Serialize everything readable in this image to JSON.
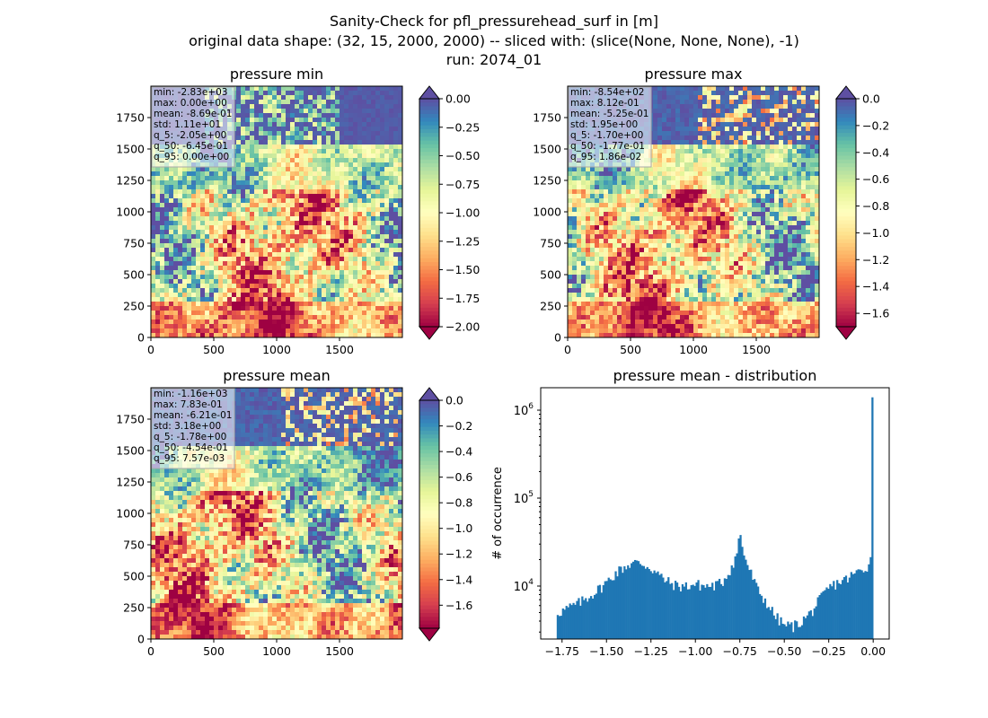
{
  "figure": {
    "title_lines": [
      "Sanity-Check for pfl_pressurehead_surf in [m]",
      "original data shape: (32, 15, 2000, 2000) -- sliced with: (slice(None, None, None), -1)",
      "run: 2074_01"
    ]
  },
  "panels": [
    {
      "title": "pressure min",
      "stats": [
        "min: -2.83e+03",
        "max: 0.00e+00",
        "mean: -8.69e-01",
        "std: 1.11e+01",
        "q_5: -2.05e+00",
        "q_50: -6.45e-01",
        "q_95: 0.00e+00"
      ],
      "x_ticks": [
        "0",
        "500",
        "1000",
        "1500"
      ],
      "y_ticks": [
        "0",
        "250",
        "500",
        "750",
        "1000",
        "1250",
        "1500",
        "1750"
      ],
      "colorbar": {
        "vmin": -2.0,
        "vmax": 0.0,
        "ticks": [
          "0.00",
          "−0.25",
          "−0.50",
          "−0.75",
          "−1.00",
          "−1.25",
          "−1.50",
          "−1.75",
          "−2.00"
        ],
        "extend": "both"
      }
    },
    {
      "title": "pressure max",
      "stats": [
        "min: -8.54e+02",
        "max: 8.12e-01",
        "mean: -5.25e-01",
        "std: 1.95e+00",
        "q_5: -1.70e+00",
        "q_50: -1.77e-01",
        "q_95: 1.86e-02"
      ],
      "x_ticks": [
        "0",
        "500",
        "1000",
        "1500"
      ],
      "y_ticks": [
        "0",
        "250",
        "500",
        "750",
        "1000",
        "1250",
        "1500",
        "1750"
      ],
      "colorbar": {
        "vmin": -1.7,
        "vmax": 0.0,
        "ticks": [
          "0.0",
          "−0.2",
          "−0.4",
          "−0.6",
          "−0.8",
          "−1.0",
          "−1.2",
          "−1.4",
          "−1.6"
        ],
        "extend": "both"
      }
    },
    {
      "title": "pressure mean",
      "stats": [
        "min: -1.16e+03",
        "max: 7.83e-01",
        "mean: -6.21e-01",
        "std: 3.18e+00",
        "q_5: -1.78e+00",
        "q_50: -4.54e-01",
        "q_95: 7.57e-03"
      ],
      "x_ticks": [
        "0",
        "500",
        "1000",
        "1500"
      ],
      "y_ticks": [
        "0",
        "250",
        "500",
        "750",
        "1000",
        "1250",
        "1500",
        "1750"
      ],
      "colorbar": {
        "vmin": -1.78,
        "vmax": 0.0,
        "ticks": [
          "0.0",
          "−0.2",
          "−0.4",
          "−0.6",
          "−0.8",
          "−1.0",
          "−1.2",
          "−1.4",
          "−1.6"
        ],
        "extend": "both"
      }
    }
  ],
  "colormap": {
    "name": "Spectral",
    "stops": [
      "#9e0142",
      "#d53e4f",
      "#f46d43",
      "#fdae61",
      "#fee08b",
      "#ffffbf",
      "#e6f598",
      "#abdda4",
      "#66c2a5",
      "#3288bd",
      "#5e4fa2"
    ]
  },
  "chart_data": [
    {
      "type": "heatmap",
      "title": "pressure min",
      "xlim": [
        0,
        2000
      ],
      "ylim": [
        0,
        2000
      ],
      "vmin": -2.0,
      "vmax": 0.0,
      "colormap": "Spectral"
    },
    {
      "type": "heatmap",
      "title": "pressure max",
      "xlim": [
        0,
        2000
      ],
      "ylim": [
        0,
        2000
      ],
      "vmin": -1.7,
      "vmax": 0.0,
      "colormap": "Spectral"
    },
    {
      "type": "heatmap",
      "title": "pressure mean",
      "xlim": [
        0,
        2000
      ],
      "ylim": [
        0,
        2000
      ],
      "vmin": -1.78,
      "vmax": 0.0,
      "colormap": "Spectral"
    },
    {
      "type": "bar",
      "title": "pressure mean - distribution",
      "xlabel": "",
      "ylabel": "# of occurrence",
      "yscale": "log",
      "xlim": [
        -1.87,
        0.09
      ],
      "ylim": [
        2500,
        1800000
      ],
      "x_ticks": [
        "−1.75",
        "−1.50",
        "−1.25",
        "−1.00",
        "−0.75",
        "−0.50",
        "−0.25",
        "0.00"
      ],
      "y_ticks": [
        "10^4",
        "10^5",
        "10^6"
      ],
      "color": "#1f77b4",
      "bins": [
        -1.78,
        0.0
      ],
      "x": [
        -1.78,
        -1.75,
        -1.7,
        -1.65,
        -1.6,
        -1.55,
        -1.5,
        -1.45,
        -1.4,
        -1.35,
        -1.3,
        -1.25,
        -1.2,
        -1.15,
        -1.1,
        -1.05,
        -1.0,
        -0.95,
        -0.9,
        -0.85,
        -0.8,
        -0.77,
        -0.75,
        -0.73,
        -0.7,
        -0.65,
        -0.6,
        -0.55,
        -0.5,
        -0.45,
        -0.4,
        -0.35,
        -0.3,
        -0.25,
        -0.2,
        -0.15,
        -0.1,
        -0.05,
        -0.02,
        -0.01,
        -0.004,
        -0.002
      ],
      "values": [
        5000,
        5200,
        5800,
        6500,
        7600,
        9000,
        11000,
        14000,
        16500,
        18500,
        18000,
        16000,
        13000,
        11000,
        10000,
        10000,
        10500,
        10000,
        10000,
        11000,
        16000,
        22000,
        40000,
        24000,
        16000,
        9000,
        6500,
        4500,
        3600,
        3500,
        4000,
        5000,
        7000,
        9500,
        11000,
        12000,
        14000,
        16000,
        18000,
        25000,
        45000,
        1400000
      ]
    }
  ]
}
